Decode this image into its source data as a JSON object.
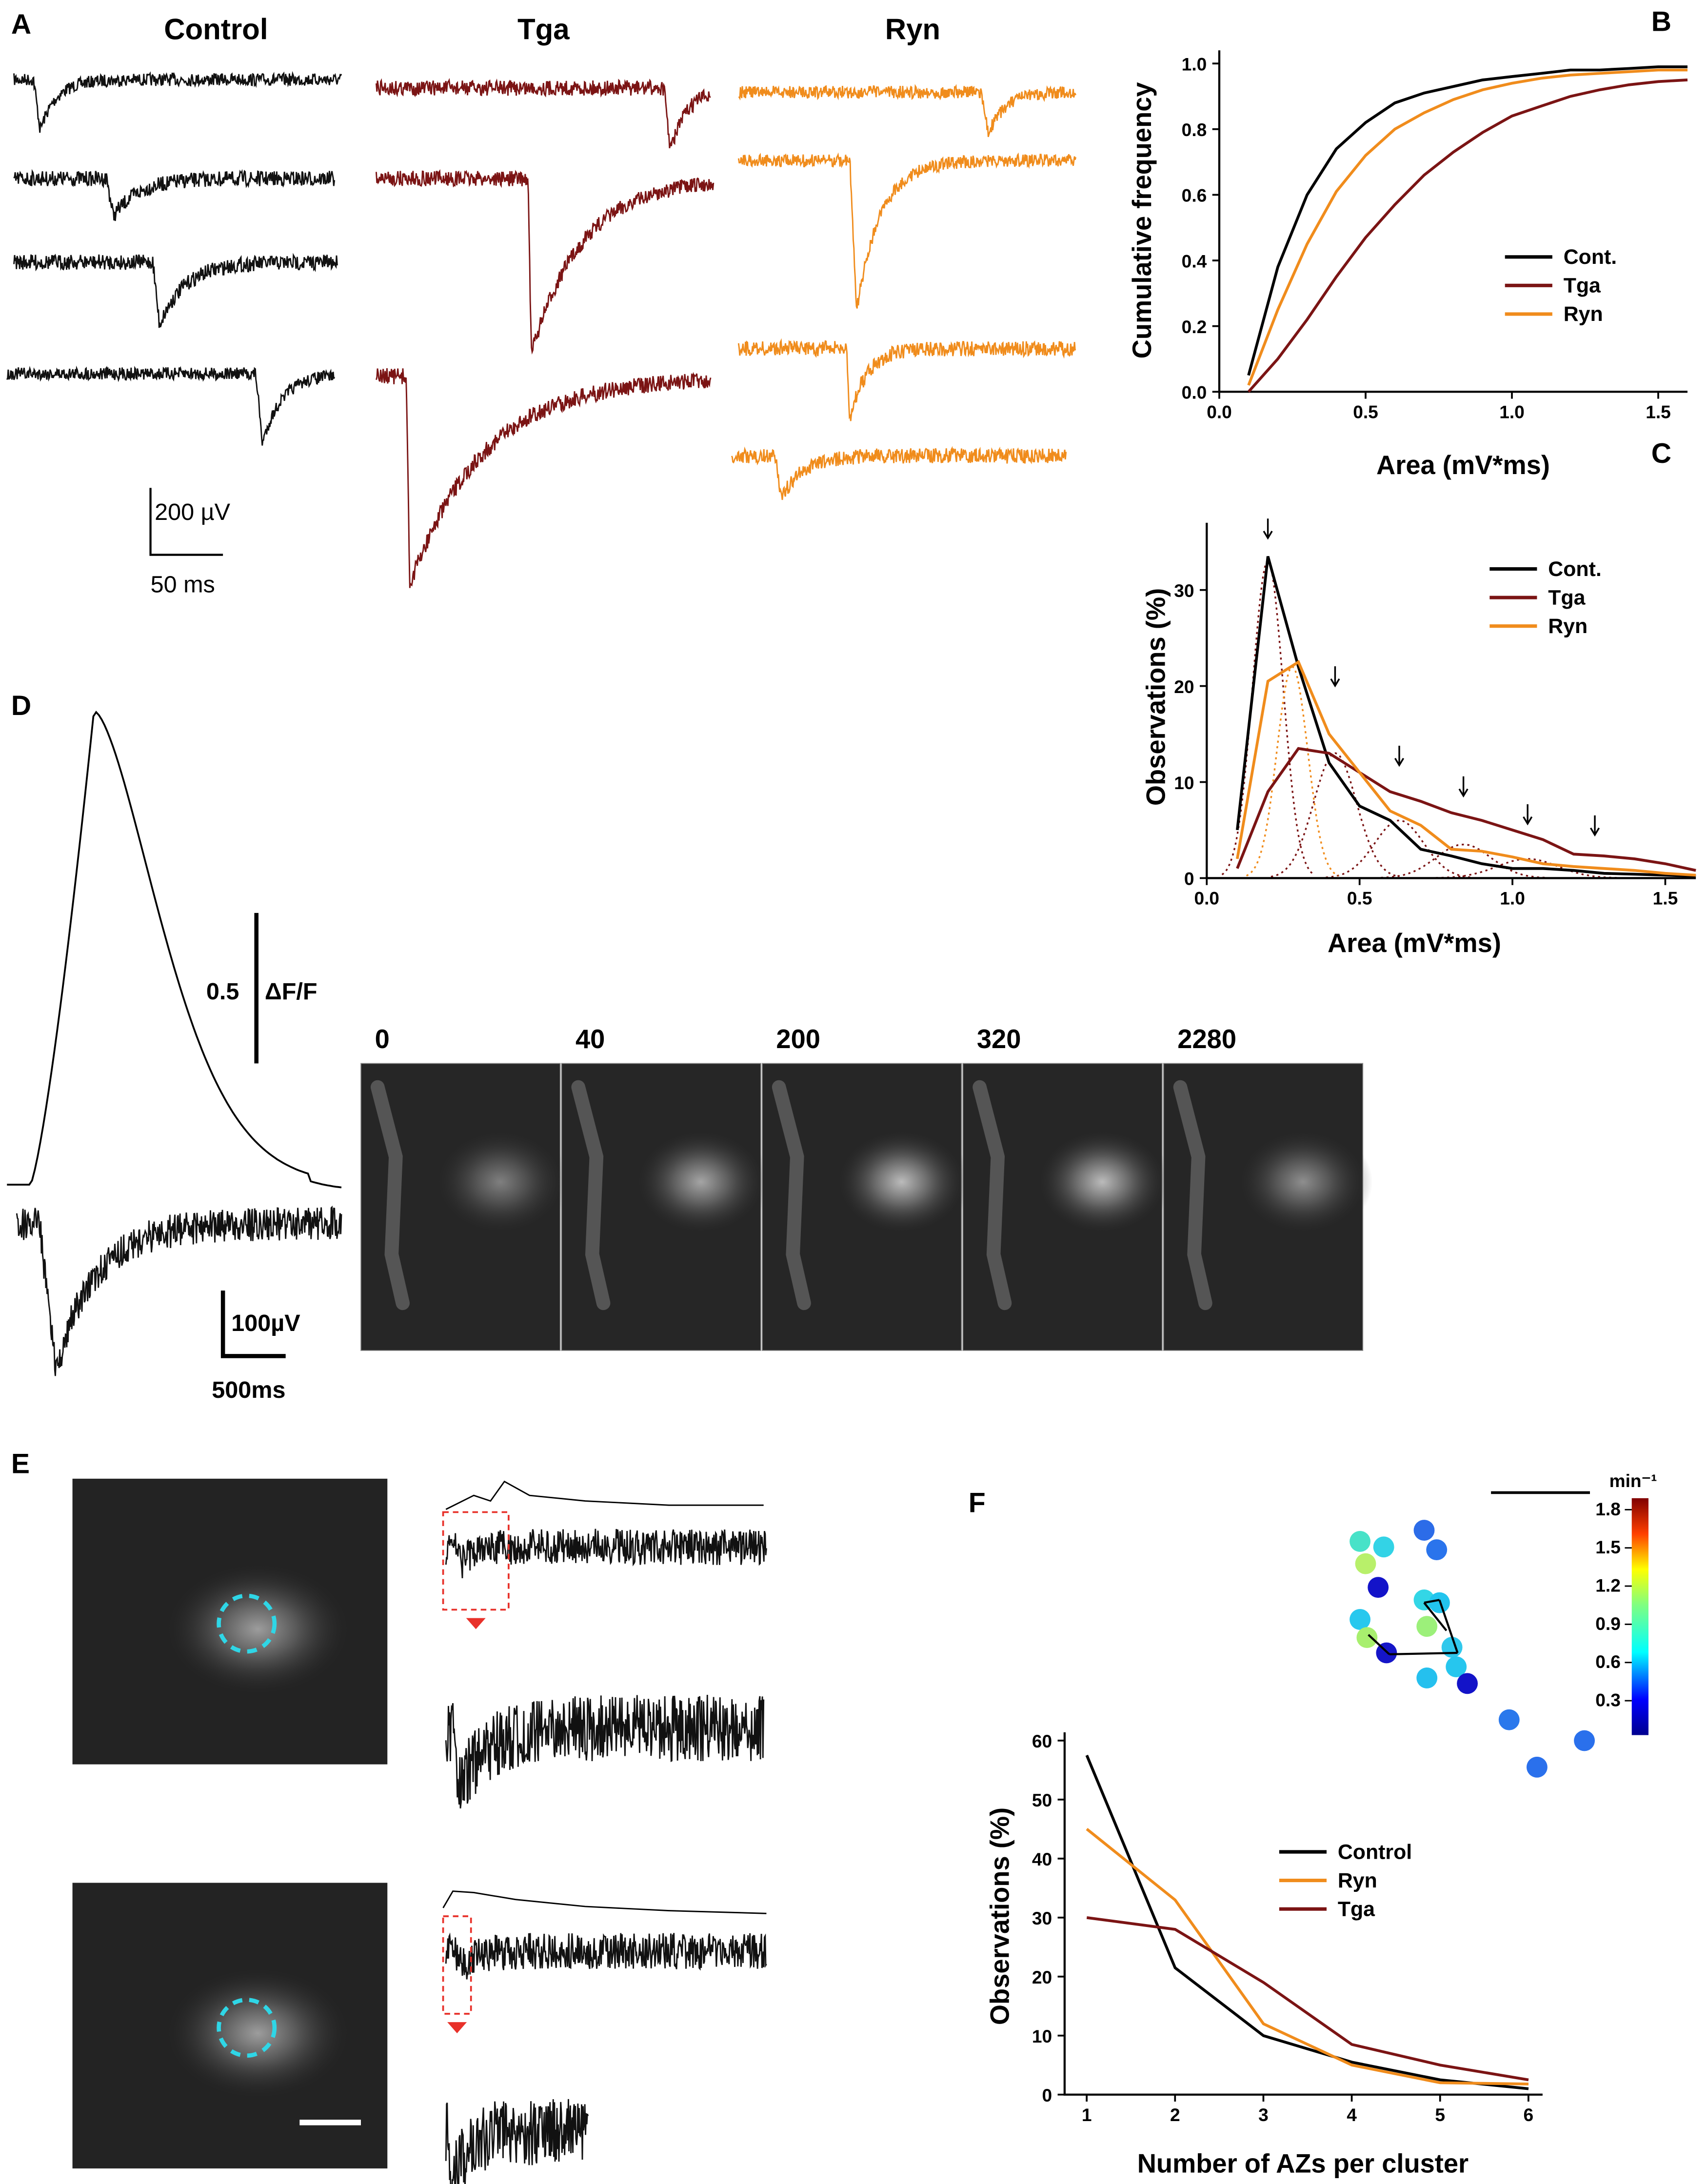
{
  "text": {
    "panel_a": "A",
    "panel_b": "B",
    "panel_c": "C",
    "panel_d": "D",
    "panel_e": "E",
    "panel_f": "F",
    "heading_control": "Control",
    "heading_tga": "Tga",
    "heading_ryn": "Ryn",
    "scale_a_v": "200 µV",
    "scale_a_t": "50 ms",
    "scale_d_f": "0.5",
    "scale_d_f_unit": "ΔF/F",
    "scale_d_v": "100µV",
    "scale_d_t": "500ms",
    "frames": [
      "0",
      "40",
      "200",
      "320",
      "2280"
    ]
  },
  "colorbar": {
    "title": "min⁻¹",
    "lim": [
      0.03,
      1.89
    ],
    "ticks": [
      1.8,
      1.5,
      1.2,
      0.9,
      0.6,
      0.3
    ]
  },
  "chart_data": [
    {
      "type": "line",
      "x_label": "Area (mV*ms)",
      "y_label": "Cumulative frequency",
      "legend": "right",
      "x": [
        0.1,
        0.2,
        0.3,
        0.4,
        0.5,
        0.6,
        0.7,
        0.8,
        0.9,
        1.0,
        1.1,
        1.2,
        1.3,
        1.4,
        1.5,
        1.6
      ],
      "series": [
        {
          "name": "Cont.",
          "color": "#000000",
          "values": [
            0.05,
            0.38,
            0.6,
            0.74,
            0.82,
            0.88,
            0.91,
            0.93,
            0.95,
            0.96,
            0.97,
            0.98,
            0.98,
            0.985,
            0.99,
            0.99
          ]
        },
        {
          "name": "Tga",
          "color": "#7b1414",
          "values": [
            0.0,
            0.1,
            0.22,
            0.35,
            0.47,
            0.57,
            0.66,
            0.73,
            0.79,
            0.84,
            0.87,
            0.9,
            0.92,
            0.935,
            0.945,
            0.95
          ]
        },
        {
          "name": "Ryn",
          "color": "#f08c1c",
          "values": [
            0.02,
            0.25,
            0.45,
            0.61,
            0.72,
            0.8,
            0.85,
            0.89,
            0.92,
            0.94,
            0.955,
            0.965,
            0.97,
            0.975,
            0.98,
            0.98
          ]
        }
      ],
      "xlim": [
        0,
        1.6
      ],
      "ylim": [
        0,
        1.04
      ],
      "xticks": [
        {
          "value": 0,
          "label": "0.0"
        },
        0.5,
        {
          "value": 1,
          "label": "1.0"
        },
        1.5
      ],
      "yticks": [
        {
          "value": 0,
          "label": "0.0"
        },
        0.2,
        0.4,
        0.6,
        0.8,
        {
          "value": 1,
          "label": "1.0"
        }
      ]
    },
    {
      "type": "line",
      "x_label": "Area (mV*ms)",
      "y_label": "Observations (%)",
      "legend": "upper right",
      "x": [
        0.1,
        0.2,
        0.3,
        0.4,
        0.5,
        0.6,
        0.7,
        0.8,
        0.9,
        1.0,
        1.1,
        1.2,
        1.3,
        1.4,
        1.5,
        1.6
      ],
      "series": [
        {
          "name": "Cont.",
          "color": "#000000",
          "values": [
            5,
            33.5,
            22,
            12,
            7.5,
            6,
            3,
            2.3,
            1.5,
            1,
            1,
            0.8,
            0.5,
            0.4,
            0.3,
            0.2
          ]
        },
        {
          "name": "Tga",
          "color": "#7b1414",
          "values": [
            1,
            9,
            13.5,
            13,
            11,
            9,
            8,
            6.8,
            6,
            5,
            4,
            2.5,
            2.3,
            2,
            1.5,
            0.8
          ]
        },
        {
          "name": "Ryn",
          "color": "#f08c1c",
          "values": [
            2,
            20.5,
            22.5,
            15,
            11,
            7,
            5.5,
            3,
            2.8,
            2.2,
            1.5,
            1.2,
            1,
            0.8,
            0.5,
            0.3
          ]
        }
      ],
      "xlim": [
        0,
        1.6
      ],
      "ylim": [
        0,
        37
      ],
      "xticks": [
        {
          "value": 0,
          "label": "0.0"
        },
        0.5,
        {
          "value": 1,
          "label": "1.0"
        },
        1.5
      ],
      "yticks": [
        0,
        10,
        20,
        30
      ]
    },
    {
      "type": "line",
      "x_label": "Number of AZs per cluster",
      "y_label": "Observations (%)",
      "legend": "center",
      "x": [
        1,
        2,
        3,
        4,
        5,
        6
      ],
      "series": [
        {
          "name": "Control",
          "color": "#000000",
          "values": [
            57.5,
            21.5,
            10,
            5.5,
            2.5,
            1
          ]
        },
        {
          "name": "Ryn",
          "color": "#f08c1c",
          "values": [
            45,
            33,
            12,
            5,
            2,
            1.8
          ]
        },
        {
          "name": "Tga",
          "color": "#7b1414",
          "values": [
            30,
            28,
            19,
            8.5,
            5,
            2.5
          ]
        }
      ],
      "xlim": [
        0.75,
        6.16
      ],
      "ylim": [
        0,
        61.4
      ],
      "xticks": [
        1,
        2,
        3,
        4,
        5,
        6
      ],
      "yticks": [
        0,
        10,
        20,
        30,
        40,
        50,
        60
      ]
    }
  ]
}
